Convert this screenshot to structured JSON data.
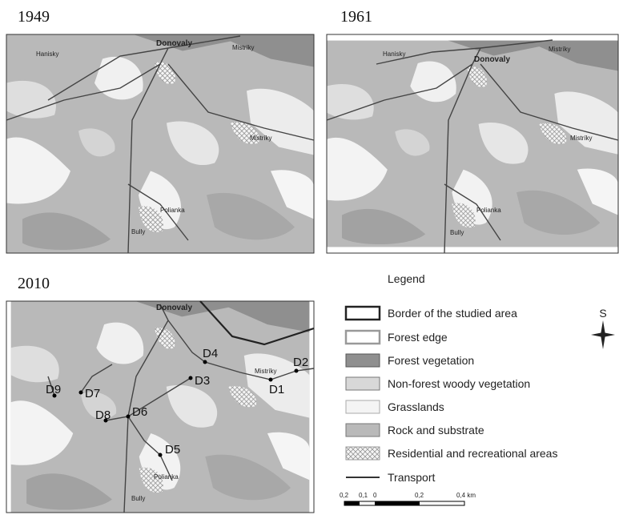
{
  "panels": [
    {
      "year": "1949",
      "places": [
        "Hanisky",
        "Donovaly",
        "Mistríky",
        "Mistríky",
        "Polianka",
        "Bully"
      ]
    },
    {
      "year": "1961",
      "places": [
        "Hanisky",
        "Donovaly",
        "Mistríky",
        "Mistríky",
        "Polianka",
        "Bully"
      ]
    },
    {
      "year": "2010",
      "places": [
        "Donovaly",
        "Mistríky",
        "Polianka",
        "Bully"
      ],
      "points": [
        "D1",
        "D2",
        "D3",
        "D4",
        "D5",
        "D6",
        "D7",
        "D8",
        "D9"
      ]
    }
  ],
  "legend": {
    "title": "Legend",
    "items": [
      "Border of the studied area",
      "Forest edge",
      "Forest vegetation",
      "Non-forest woody vegetation",
      "Grasslands",
      "Rock and substrate",
      "Residential and recreational areas",
      "Transport"
    ]
  },
  "scale_bar": [
    "0,2",
    "0,1",
    "0",
    "0,2",
    "0,4 km"
  ],
  "compass": "S"
}
